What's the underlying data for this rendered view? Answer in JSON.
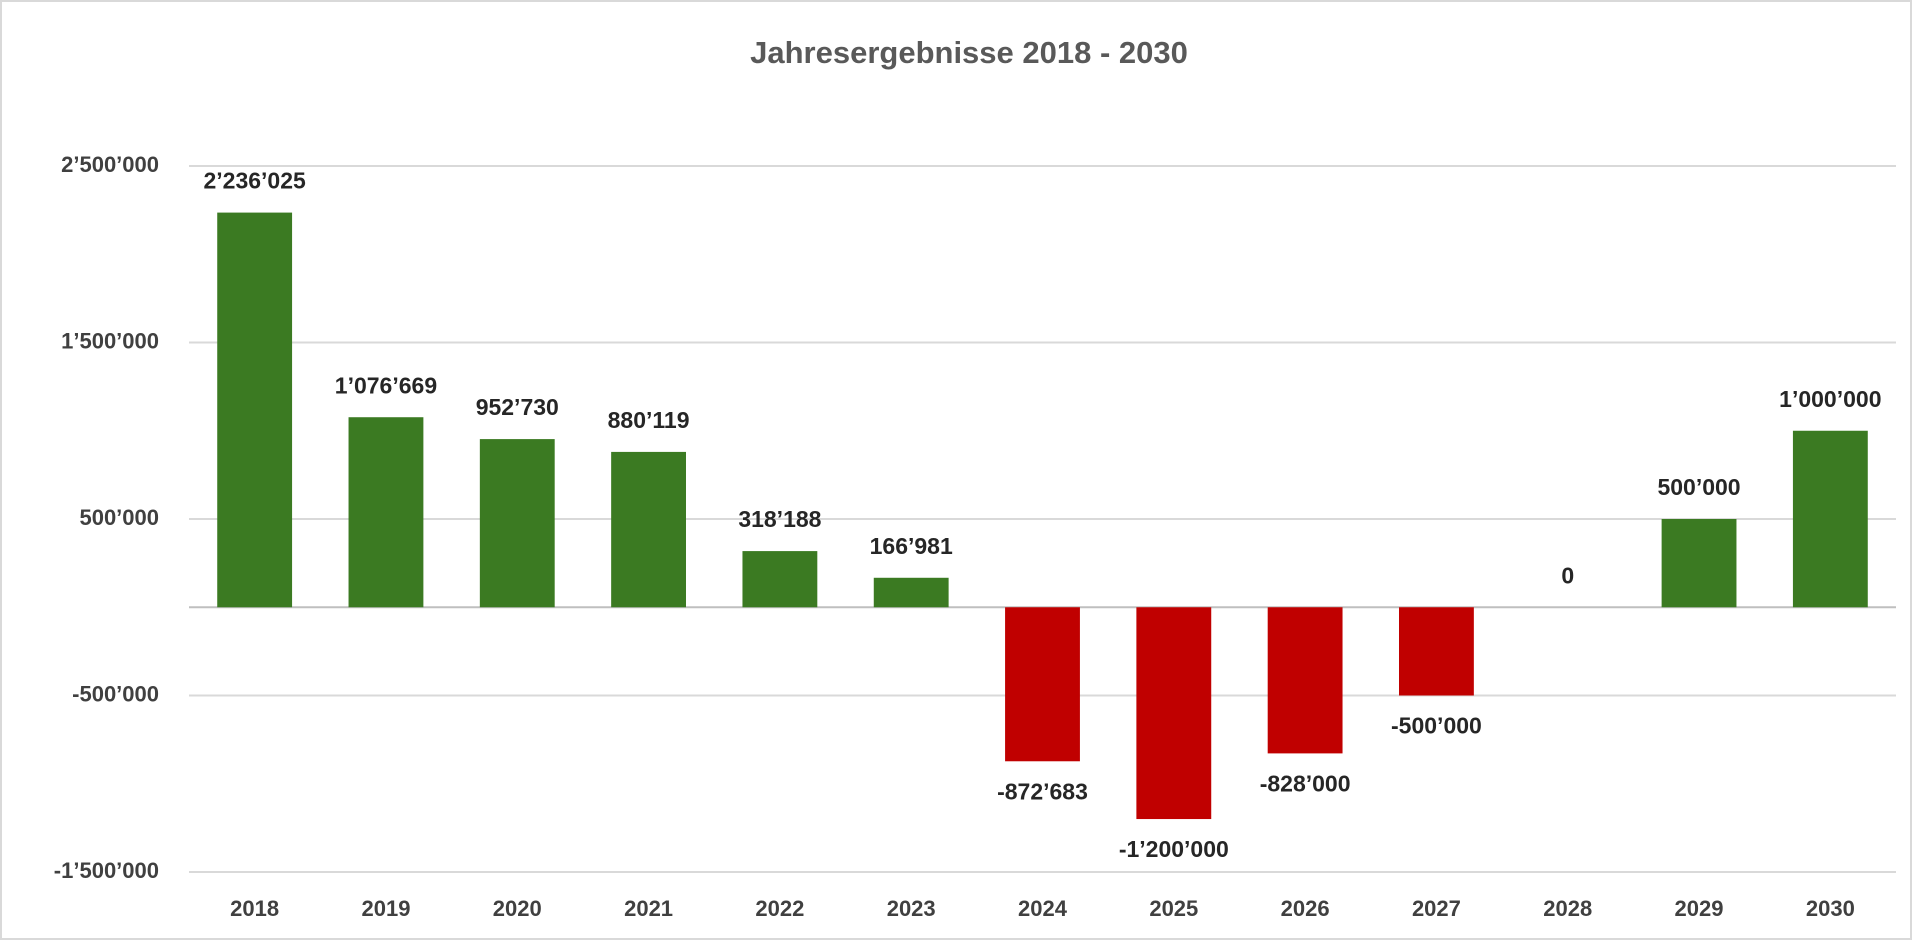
{
  "chart_data": {
    "type": "bar",
    "title": "Jahresergebnisse 2018 - 2030",
    "categories": [
      "2018",
      "2019",
      "2020",
      "2021",
      "2022",
      "2023",
      "2024",
      "2025",
      "2026",
      "2027",
      "2028",
      "2029",
      "2030"
    ],
    "values": [
      2236025,
      1076669,
      952730,
      880119,
      318188,
      166981,
      -872683,
      -1200000,
      -828000,
      -500000,
      0,
      500000,
      1000000
    ],
    "value_labels": [
      "2’236’025",
      "1’076’669",
      "952’730",
      "880’119",
      "318’188",
      "166’981",
      "-872’683",
      "-1’200’000",
      "-828’000",
      "-500’000",
      "0",
      "500’000",
      "1’000’000"
    ],
    "color": "#3b7a22",
    "negative_color": "#c00000",
    "ylim": [
      -1500000,
      2500000
    ],
    "yticks": [
      {
        "value": -1500000,
        "label": "-1’500’000"
      },
      {
        "value": -500000,
        "label": "-500’000"
      },
      {
        "value": 500000,
        "label": "500’000"
      },
      {
        "value": 1500000,
        "label": "1’500’000"
      },
      {
        "value": 2500000,
        "label": "2’500’000"
      }
    ],
    "grid": true
  }
}
